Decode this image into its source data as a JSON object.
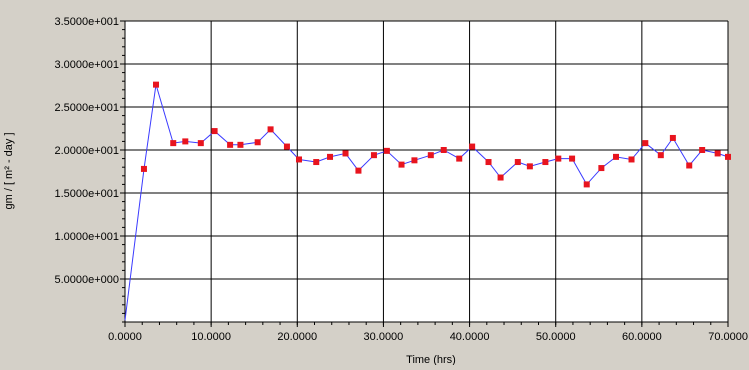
{
  "colors": {
    "background": "#d4d0c8",
    "plot_area": "#ffffff",
    "grid": "#000000",
    "line": "#3a3aff",
    "marker": "#e8141e"
  },
  "chart_data": {
    "type": "line",
    "title": "",
    "xlabel": "Time (hrs)",
    "ylabel": "gm / [ m² - day ]",
    "xlim": [
      0,
      70
    ],
    "ylim": [
      0,
      35
    ],
    "grid": true,
    "legend": "none",
    "x_ticks": [
      0,
      10,
      20,
      30,
      40,
      50,
      60,
      70
    ],
    "x_tick_labels": [
      "0.0000",
      "10.0000",
      "20.0000",
      "30.0000",
      "40.0000",
      "50.0000",
      "60.0000",
      "70.0000"
    ],
    "y_ticks": [
      5,
      10,
      15,
      20,
      25,
      30,
      35
    ],
    "y_tick_labels": [
      "5.0000e+000",
      "1.0000e+001",
      "1.5000e+001",
      "2.0000e+001",
      "2.5000e+001",
      "3.0000e+001",
      "3.5000e+001"
    ],
    "series": [
      {
        "x": [
          0,
          2.2,
          3.6,
          5.6,
          7.0,
          8.8,
          10.4,
          12.2,
          13.4,
          15.4,
          16.9,
          18.8,
          20.2,
          22.2,
          23.8,
          25.6,
          27.1,
          28.9,
          30.4,
          32.1,
          33.6,
          35.5,
          37.0,
          38.8,
          40.3,
          42.2,
          43.6,
          45.6,
          47.0,
          48.8,
          50.3,
          51.9,
          53.6,
          55.3,
          57.0,
          58.8,
          60.4,
          62.2,
          63.6,
          65.5,
          67.0,
          68.8,
          70.0
        ],
        "y": [
          0.2,
          17.8,
          27.6,
          20.8,
          21.0,
          20.8,
          22.2,
          20.6,
          20.6,
          20.9,
          22.4,
          20.4,
          18.9,
          18.6,
          19.2,
          19.6,
          17.6,
          19.4,
          19.9,
          18.3,
          18.8,
          19.4,
          20.0,
          19.0,
          20.4,
          18.6,
          16.8,
          18.6,
          18.1,
          18.6,
          19.0,
          19.0,
          16.0,
          17.9,
          19.2,
          18.9,
          20.8,
          19.4,
          21.4,
          18.2,
          20.0,
          19.6,
          19.2
        ]
      }
    ]
  }
}
